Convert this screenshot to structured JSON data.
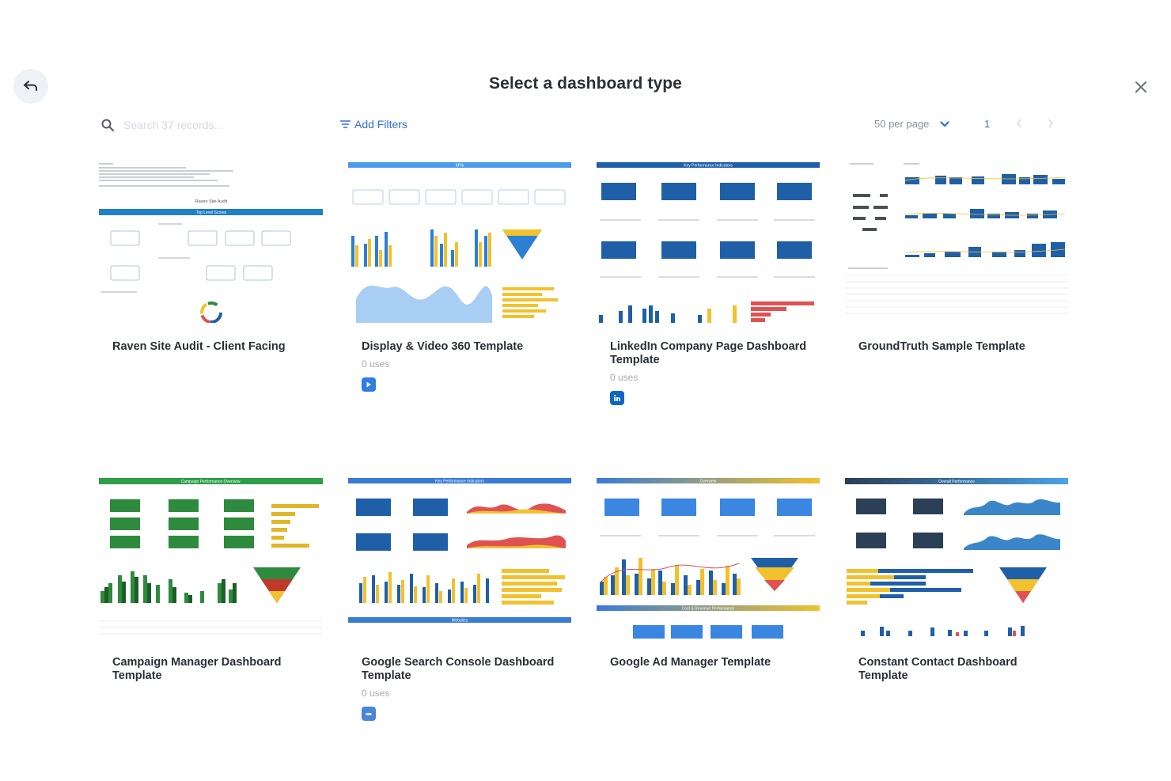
{
  "header": {
    "title": "Select a dashboard type"
  },
  "toolbar": {
    "search_placeholder": "Search 37 records...",
    "add_filters_label": "Add Filters",
    "per_page_label": "50 per page",
    "current_page": "1"
  },
  "cards": [
    {
      "title": "Raven Site Audit - Client Facing",
      "uses": "",
      "badge_icon": "",
      "thumb": {
        "banner": "Top Level Scores",
        "brand": "Raven Site Audit"
      }
    },
    {
      "title": "Display & Video 360 Template",
      "uses": "0 uses",
      "badge_icon": "dv360-icon",
      "badge_color": "#2f7de1",
      "thumb": {
        "banner": "KPIs"
      }
    },
    {
      "title": "LinkedIn Company Page Dashboard Template",
      "uses": "0 uses",
      "badge_icon": "linkedin-icon",
      "badge_color": "#0a66c2",
      "thumb": {
        "banner": "Key Performance Indicators"
      }
    },
    {
      "title": "GroundTruth Sample Template",
      "uses": "",
      "badge_icon": "",
      "thumb": {
        "banner": ""
      }
    },
    {
      "title": "Campaign Manager Dashboard Template",
      "uses": "",
      "badge_icon": "",
      "thumb": {
        "banner": "Campaign Performance Overview"
      }
    },
    {
      "title": "Google Search Console Dashboard Template",
      "uses": "0 uses",
      "badge_icon": "google-search-console-icon",
      "badge_color": "#4a86d8",
      "thumb": {
        "banner": "Key Performance Indicators",
        "banner2": "Websites"
      }
    },
    {
      "title": "Google Ad Manager Template",
      "uses": "",
      "badge_icon": "",
      "thumb": {
        "banner": "Overview",
        "banner2": "Cost & Revenue Performance"
      }
    },
    {
      "title": "Constant Contact Dashboard Template",
      "uses": "",
      "badge_icon": "",
      "thumb": {
        "banner": "Overall Performance"
      }
    }
  ],
  "colors": {
    "accent": "#2f6fd1",
    "dark_blue": "#1f5fa8",
    "yellow": "#f2c12e",
    "green": "#2e8b3e",
    "red": "#e05252"
  }
}
